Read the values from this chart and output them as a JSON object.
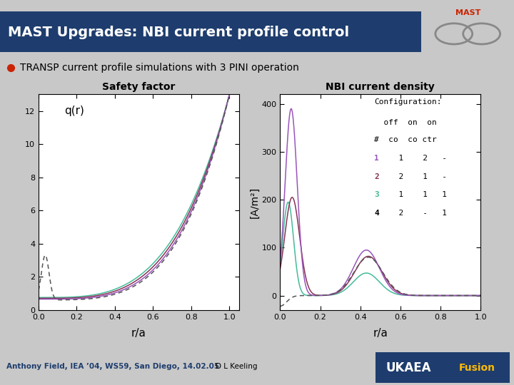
{
  "title": "MAST Upgrades: NBI current profile control",
  "subtitle": "TRANSP current profile simulations with 3 PINI operation",
  "title_bg": "#1e3d6e",
  "title_fg": "#ffffff",
  "bg_color": "#c8c8c8",
  "plot_bg": "#ffffff",
  "left_title": "Safety factor",
  "right_title": "NBI current density",
  "left_xlabel": "r/a",
  "right_xlabel": "r/a",
  "left_ylabel": "q(r)",
  "right_ylabel": "[A/m²]",
  "left_xlim": [
    0.0,
    1.05
  ],
  "left_ylim": [
    0,
    13
  ],
  "right_xlim": [
    0.0,
    1.0
  ],
  "right_ylim": [
    -30,
    420
  ],
  "footer_left": "Anthony Field, IEA ’04, WS59, San Diego, 14.02.05",
  "footer_right": "D L Keeling",
  "colors": {
    "1": "#9955bb",
    "2": "#883355",
    "3": "#44bb99",
    "4": "#555555"
  }
}
